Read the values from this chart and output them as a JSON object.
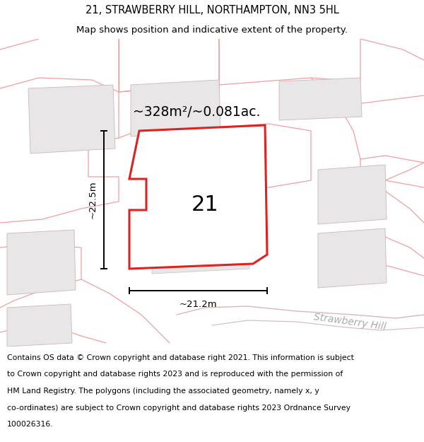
{
  "title_line1": "21, STRAWBERRY HILL, NORTHAMPTON, NN3 5HL",
  "title_line2": "Map shows position and indicative extent of the property.",
  "area_text": "~328m²/~0.081ac.",
  "label_number": "21",
  "dim_vertical": "~22.5m",
  "dim_horizontal": "~21.2m",
  "street_label": "Strawberry Hill",
  "footer_lines": [
    "Contains OS data © Crown copyright and database right 2021. This information is subject",
    "to Crown copyright and database rights 2023 and is reproduced with the permission of",
    "HM Land Registry. The polygons (including the associated geometry, namely x, y",
    "co-ordinates) are subject to Crown copyright and database rights 2023 Ordnance Survey",
    "100026316."
  ],
  "map_bg": "#f7f5f5",
  "property_color": "#dd2222",
  "neighbor_fill": "#e8e6e6",
  "neighbor_stroke": "#ccb8b8",
  "plot_outline_color": "#f0a0a0",
  "road_color": "#d8b8b8",
  "title_fontsize": 10.5,
  "subtitle_fontsize": 9.5,
  "footer_fontsize": 7.8
}
